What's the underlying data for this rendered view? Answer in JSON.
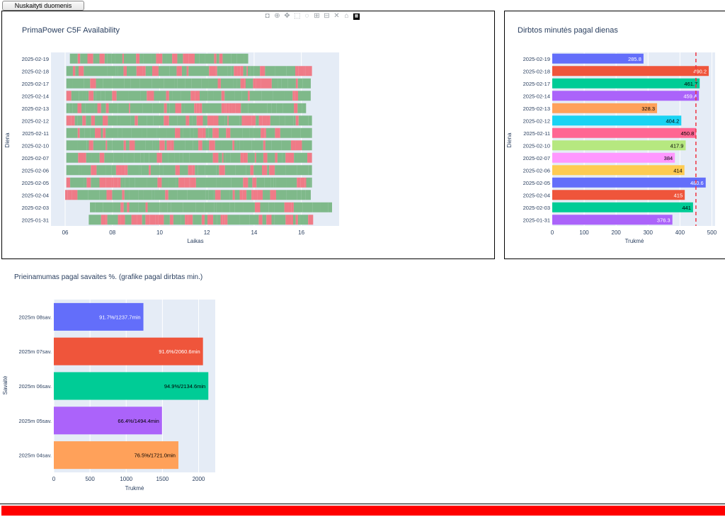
{
  "toolbar": {
    "load_button": "Nuskaityti duomenis"
  },
  "modebar": {
    "icons": [
      "camera-icon",
      "zoom-icon",
      "pan-icon",
      "box-select-icon",
      "lasso-icon",
      "zoom-in-icon",
      "zoom-out-icon",
      "autoscale-icon",
      "home-icon",
      "plotly-logo-icon"
    ]
  },
  "colors": {
    "green": "#7fb98a",
    "red": "#ef7b87",
    "plot_bg": "#e5ecf6",
    "ref_line": "#ef3340",
    "status_bar": "#ff0000"
  },
  "chart_data": [
    {
      "type": "gantt",
      "title": "PrimaPower C5F Availability",
      "xlabel": "Laikas",
      "ylabel": "Diena",
      "x_ticks": [
        "06",
        "08",
        "10",
        "12",
        "14",
        "16"
      ],
      "xlim": [
        5.4,
        17.6
      ],
      "series": [
        {
          "name": "2025-02-19",
          "start": 6.2,
          "end": 13.75
        },
        {
          "name": "2025-02-18",
          "start": 6.05,
          "end": 16.45
        },
        {
          "name": "2025-02-17",
          "start": 6.05,
          "end": 16.4
        },
        {
          "name": "2025-02-14",
          "start": 6.05,
          "end": 16.4
        },
        {
          "name": "2025-02-13",
          "start": 6.05,
          "end": 16.2
        },
        {
          "name": "2025-02-12",
          "start": 6.05,
          "end": 16.45
        },
        {
          "name": "2025-02-11",
          "start": 6.05,
          "end": 16.45
        },
        {
          "name": "2025-02-10",
          "start": 6.05,
          "end": 16.45
        },
        {
          "name": "2025-02-07",
          "start": 6.05,
          "end": 16.45
        },
        {
          "name": "2025-02-06",
          "start": 6.05,
          "end": 16.45
        },
        {
          "name": "2025-02-05",
          "start": 6.05,
          "end": 16.45
        },
        {
          "name": "2025-02-04",
          "start": 6.0,
          "end": 16.4
        },
        {
          "name": "2025-02-03",
          "start": 7.05,
          "end": 17.3
        },
        {
          "name": "2025-01-31",
          "start": 7.0,
          "end": 16.5
        }
      ]
    },
    {
      "type": "bar",
      "orientation": "horizontal",
      "title": "Dirbtos minutės pagal dienas",
      "xlabel": "Trukmė",
      "ylabel": "Diena",
      "xlim": [
        0,
        510
      ],
      "x_ticks": [
        0,
        100,
        200,
        300,
        400,
        500
      ],
      "reference_line": 450,
      "categories": [
        "2025-02-19",
        "2025-02-18",
        "2025-02-17",
        "2025-02-14",
        "2025-02-13",
        "2025-02-12",
        "2025-02-11",
        "2025-02-10",
        "2025-02-07",
        "2025-02-06",
        "2025-02-05",
        "2025-02-04",
        "2025-02-03",
        "2025-01-31"
      ],
      "values": [
        285.8,
        490.2,
        461.7,
        459.4,
        328.3,
        404.2,
        450.8,
        417.9,
        384,
        414,
        480.6,
        415,
        441,
        376.3
      ],
      "labels": [
        "285.8",
        "490.2",
        "461.7",
        "459.4",
        "328.3",
        "404.2",
        "450.8",
        "417.9",
        "384",
        "414",
        "480.6",
        "415",
        "441",
        "376.3"
      ],
      "bar_colors": [
        "#636efa",
        "#ef553b",
        "#00cc96",
        "#ab63fa",
        "#ffa15a",
        "#19d3f3",
        "#ff6692",
        "#b6e880",
        "#ff97ff",
        "#fecb52",
        "#636efa",
        "#ef553b",
        "#00cc96",
        "#ab63fa"
      ]
    },
    {
      "type": "bar",
      "orientation": "horizontal",
      "title": "Prieinamumas pagal savaites %. (grafike pagal dirbtas min.)",
      "xlabel": "Trukmė",
      "ylabel": "Savaitė",
      "xlim": [
        0,
        2230
      ],
      "x_ticks": [
        0,
        500,
        1000,
        1500,
        2000
      ],
      "categories": [
        "2025m 08sav.",
        "2025m 07sav.",
        "2025m 06sav.",
        "2025m 05sav.",
        "2025m 04sav."
      ],
      "values": [
        1237.7,
        2060.6,
        2134.6,
        1494.4,
        1721.0
      ],
      "labels": [
        "91.7%/1237.7min",
        "91.6%/2060.6min",
        "94.9%/2134.6min",
        "66.4%/1494.4min",
        "76.5%/1721.0min"
      ],
      "bar_colors": [
        "#636efa",
        "#ef553b",
        "#00cc96",
        "#ab63fa",
        "#ffa15a"
      ]
    }
  ]
}
